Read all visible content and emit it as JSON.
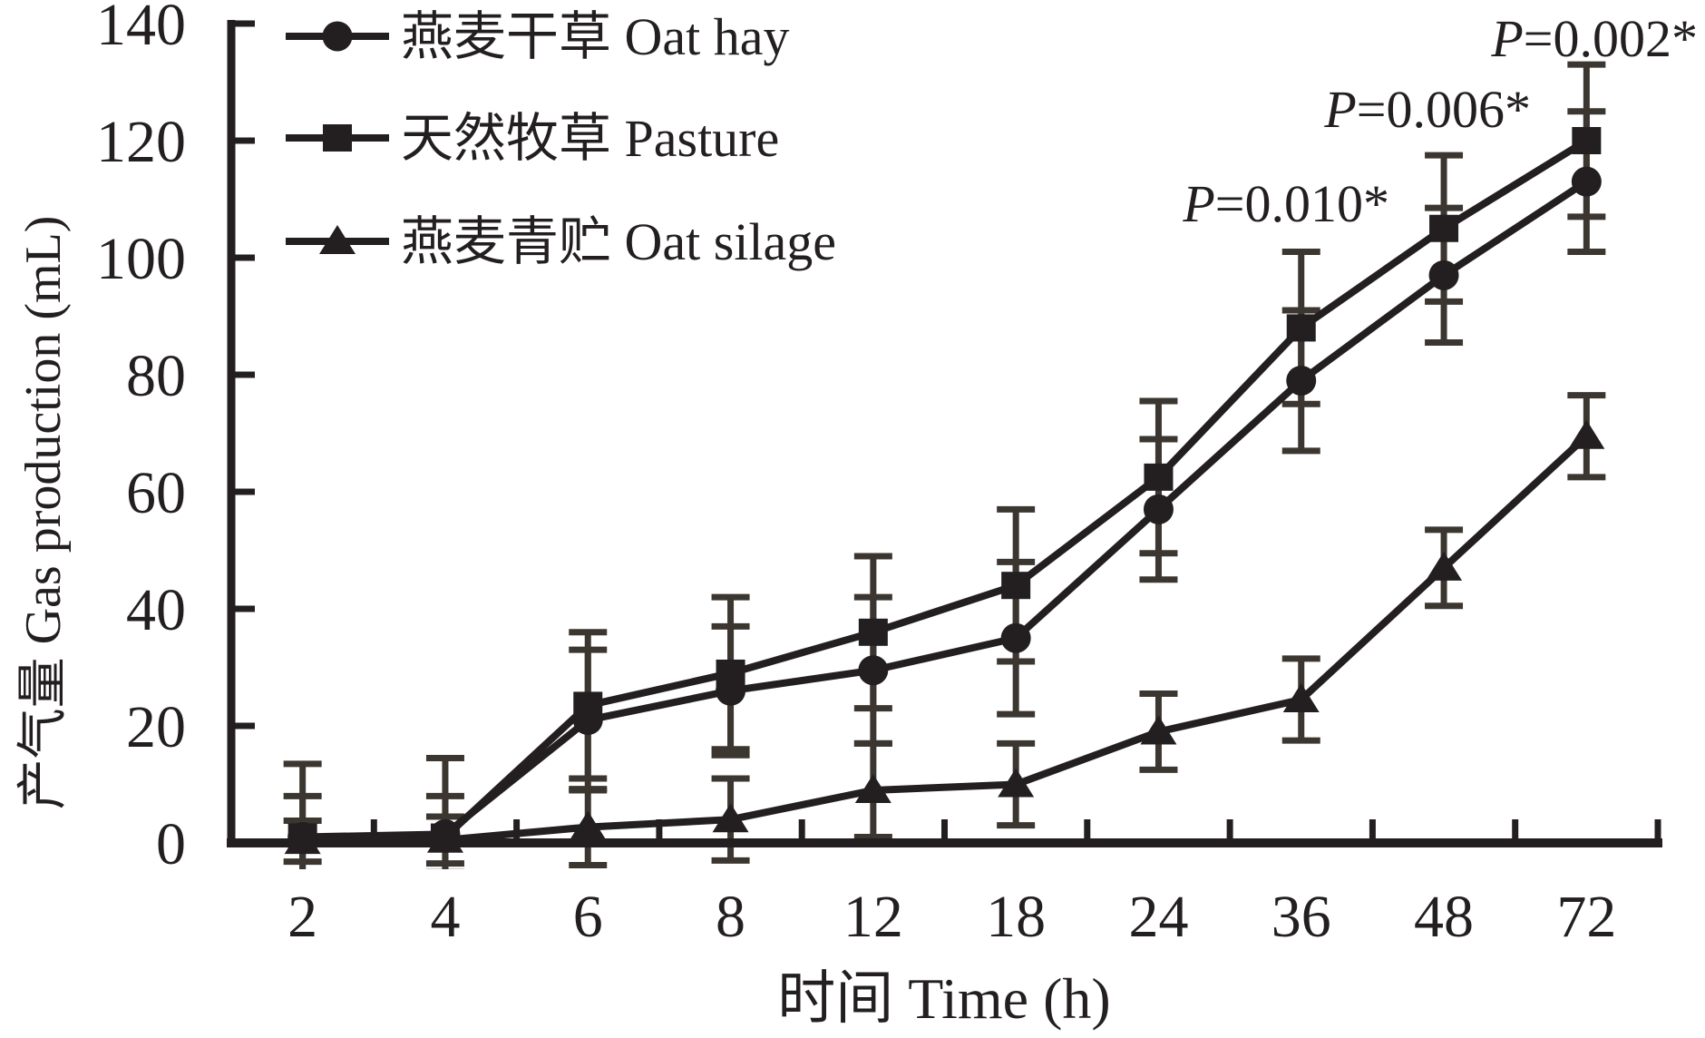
{
  "chart_data": {
    "type": "line",
    "title": "",
    "xlabel": "时间 Time (h)",
    "ylabel": "产气量 Gas production (mL)",
    "categories": [
      "2",
      "4",
      "6",
      "8",
      "12",
      "18",
      "24",
      "36",
      "48",
      "72"
    ],
    "ylim": [
      0,
      140
    ],
    "y_tick_step": 20,
    "y_ticks": [
      "0",
      "20",
      "40",
      "60",
      "80",
      "100",
      "120",
      "140"
    ],
    "grid": false,
    "legend_position": "top-left-inside",
    "error_bars": true,
    "series": [
      {
        "label": "燕麦干草 Oat hay",
        "name_cn": "燕麦干草",
        "name_en": "Oat hay",
        "marker": "circle",
        "values": [
          1,
          1.5,
          21,
          26,
          29.5,
          35,
          57,
          79,
          97,
          113
        ],
        "errors": [
          7,
          6.5,
          12,
          11,
          12.5,
          13,
          12,
          12,
          11.5,
          12
        ]
      },
      {
        "label": "天然牧草 Pasture",
        "name_cn": "天然牧草",
        "name_en": "Pasture",
        "marker": "square",
        "values": [
          1,
          1,
          23.5,
          29,
          36,
          44,
          62.5,
          88,
          105,
          120
        ],
        "errors": [
          12.5,
          13.5,
          12.5,
          13,
          13,
          13,
          13,
          13,
          12.5,
          13
        ]
      },
      {
        "label": "燕麦青贮 Oat silage",
        "name_cn": "燕麦青贮",
        "name_en": "Oat silage",
        "marker": "triangle",
        "values": [
          0.3,
          0.5,
          2.7,
          4,
          9,
          10,
          19,
          24.5,
          47,
          69.5
        ],
        "errors": [
          3.5,
          4,
          6.5,
          7,
          8,
          7,
          6.5,
          7,
          6.5,
          7
        ]
      }
    ],
    "annotations": [
      {
        "italic_prefix": "P",
        "rest": "=0.010*",
        "text": "P=0.010*"
      },
      {
        "italic_prefix": "P",
        "rest": "=0.006*",
        "text": "P=0.006*"
      },
      {
        "italic_prefix": "P",
        "rest": "=0.002*",
        "text": "P=0.002*"
      }
    ],
    "colors": {
      "line": "#231f20",
      "marker": "#231f20",
      "error_bar": "#3c3631",
      "text": "#231f20",
      "background": "#ffffff"
    }
  }
}
